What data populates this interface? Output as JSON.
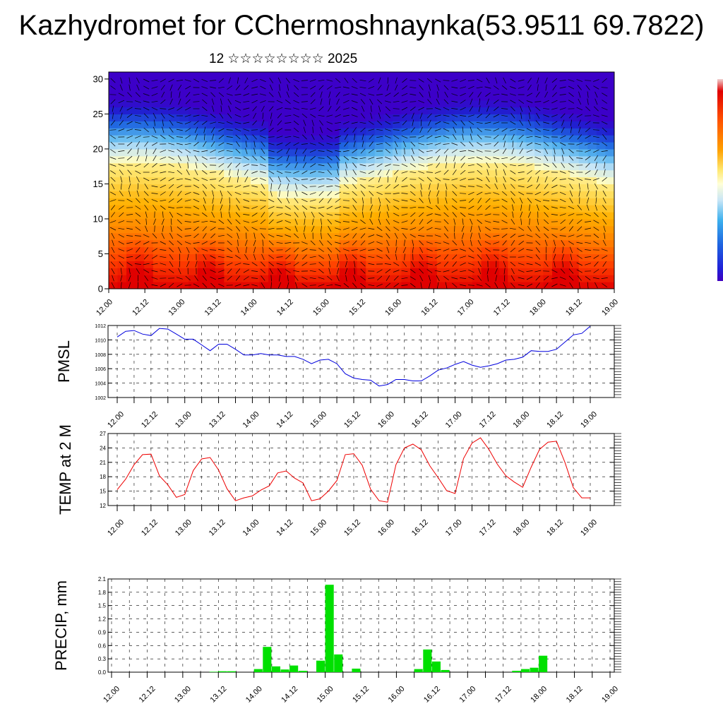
{
  "page": {
    "title": "Kazhydromet for CChermoshnaynka(53.9511 69.7822)",
    "subtitle": "12 ☆☆☆☆☆☆☆☆ 2025"
  },
  "chart_data": [
    {
      "type": "heatmap",
      "title": "",
      "xlabel": "",
      "ylabel": "",
      "x_ticks": [
        "12.00",
        "12.12",
        "13.00",
        "13.12",
        "14.00",
        "14.12",
        "15.00",
        "15.12",
        "16.00",
        "16.12",
        "17.00",
        "17.12",
        "18.00",
        "18.12",
        "19.00"
      ],
      "y_ticks": [
        0,
        5,
        10,
        15,
        20,
        25,
        30
      ],
      "ylim": [
        0,
        31
      ],
      "overlay": "wind vectors",
      "colormap": [
        "#e00000",
        "#ff4000",
        "#ff8000",
        "#ffb000",
        "#ffe060",
        "#fffcc0",
        "#c8e6f6",
        "#56b4ee",
        "#1e64e0",
        "#2020d0",
        "#3c00c8"
      ],
      "colorbar": "right edge"
    },
    {
      "type": "line",
      "ylabel": "PMSL",
      "x_ticks": [
        "12.00",
        "12.12",
        "13.00",
        "13.12",
        "14.00",
        "14.12",
        "15.00",
        "15.12",
        "16.00",
        "16.12",
        "17.00",
        "17.12",
        "18.00",
        "18.12",
        "19.00"
      ],
      "ylim": [
        1002,
        1012
      ],
      "y_ticks": [
        1002,
        1004,
        1006,
        1008,
        1010,
        1012
      ],
      "color": "#0000dd",
      "series": [
        {
          "values": [
            1010.4,
            1011.2,
            1011.3,
            1010.8,
            1010.6,
            1011.6,
            1011.5,
            1010.8,
            1010.1,
            1010.1,
            1009.3,
            1008.5,
            1009.4,
            1009.4,
            1008.7,
            1007.9,
            1007.9,
            1008.1,
            1007.9,
            1007.9,
            1007.7,
            1007.7,
            1007.3,
            1006.7,
            1007.2,
            1007.3,
            1006.7,
            1005.3,
            1004.7,
            1004.5,
            1004.4,
            1003.6,
            1003.8,
            1004.5,
            1004.5,
            1004.3,
            1004.3,
            1005.0,
            1005.8,
            1006.1,
            1006.6,
            1007.0,
            1006.5,
            1006.2,
            1006.4,
            1006.7,
            1007.2,
            1007.3,
            1007.6,
            1008.5,
            1008.4,
            1008.4,
            1008.7,
            1009.7,
            1010.7,
            1010.9,
            1011.9
          ]
        }
      ]
    },
    {
      "type": "line",
      "ylabel": "TEMP at 2 M",
      "x_ticks": [
        "12.00",
        "12.12",
        "13.00",
        "13.12",
        "14.00",
        "14.12",
        "15.00",
        "15.12",
        "16.00",
        "16.12",
        "17.00",
        "17.12",
        "18.00",
        "18.12",
        "19.00"
      ],
      "ylim": [
        12,
        27
      ],
      "y_ticks": [
        12,
        15,
        18,
        21,
        24,
        27
      ],
      "color": "#ee0000",
      "series": [
        {
          "values": [
            15.3,
            17.5,
            20.5,
            22.6,
            22.7,
            18.2,
            16.3,
            13.7,
            14.3,
            19.3,
            21.7,
            22.0,
            19.4,
            15.5,
            13.0,
            13.6,
            14.0,
            15.2,
            16.1,
            18.8,
            19.2,
            17.7,
            16.7,
            13.0,
            13.4,
            15.0,
            17.2,
            22.6,
            22.8,
            20.4,
            15.4,
            13.0,
            12.7,
            20.5,
            24.0,
            24.8,
            23.6,
            20.3,
            17.8,
            15.1,
            14.5,
            21.8,
            25.0,
            26.1,
            23.7,
            20.6,
            18.2,
            16.9,
            15.8,
            20.0,
            23.7,
            25.2,
            25.4,
            21.0,
            15.7,
            13.6,
            13.6
          ]
        }
      ]
    },
    {
      "type": "bar",
      "ylabel": "PRECIP, mm",
      "x_ticks": [
        "12.00",
        "12.12",
        "13.00",
        "13.12",
        "14.00",
        "14.12",
        "15.00",
        "15.12",
        "16.00",
        "16.12",
        "17.00",
        "17.12",
        "18.00",
        "18.12",
        "19.00"
      ],
      "ylim": [
        0,
        2.1
      ],
      "y_ticks": [
        "0.0",
        "0.3",
        "0.6",
        "0.9",
        "1.2",
        "1.5",
        "1.8",
        "2.1"
      ],
      "color": "#00e000",
      "values": [
        0,
        0,
        0,
        0,
        0,
        0,
        0,
        0,
        0,
        0,
        0,
        0.01,
        0.02,
        0.02,
        0,
        0,
        0.07,
        0.57,
        0.13,
        0.06,
        0.15,
        0.03,
        0,
        0.26,
        1.97,
        0.4,
        0,
        0.08,
        0,
        0,
        0,
        0,
        0,
        0,
        0.07,
        0.51,
        0.24,
        0.05,
        0,
        0,
        0,
        0,
        0,
        0,
        0,
        0.03,
        0.07,
        0.1,
        0.37,
        0,
        0,
        0,
        0,
        0,
        0,
        0
      ]
    }
  ]
}
